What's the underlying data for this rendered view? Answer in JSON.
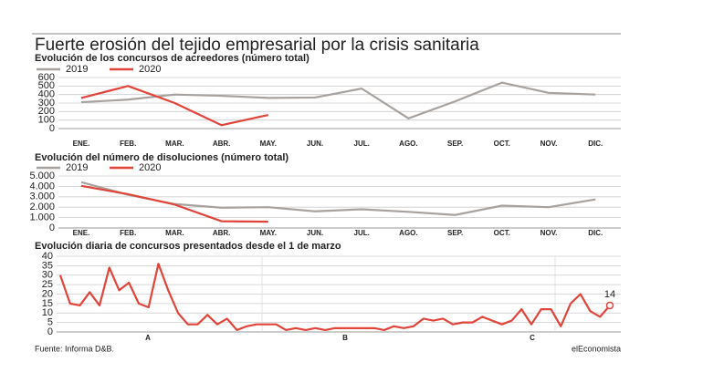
{
  "title": "Fuerte erosión del tejido empresarial por la crisis sanitaria",
  "source": "Fuente: Informa D&B.",
  "brand": "elEconomista",
  "chart_data": [
    {
      "type": "line",
      "title": "Evolución de los concursos de acreedores (número total)",
      "categories": [
        "ENE.",
        "FEB.",
        "MAR.",
        "ABR.",
        "MAY.",
        "JUN.",
        "JUL.",
        "AGO.",
        "SEP.",
        "OCT.",
        "NOV.",
        "DIC."
      ],
      "series": [
        {
          "name": "2019",
          "color": "#a8a29e",
          "values": [
            310,
            340,
            400,
            385,
            360,
            365,
            470,
            120,
            320,
            540,
            420,
            400
          ]
        },
        {
          "name": "2020",
          "color": "#e0443a",
          "values": [
            360,
            500,
            300,
            40,
            160,
            null,
            null,
            null,
            null,
            null,
            null,
            null
          ]
        }
      ],
      "ylim": [
        0,
        600
      ],
      "yticks": [
        0,
        100,
        200,
        300,
        400,
        500,
        600
      ],
      "grid": true
    },
    {
      "type": "line",
      "title": "Evolución del número de disoluciones (número total)",
      "categories": [
        "ENE.",
        "FEB.",
        "MAR.",
        "ABR.",
        "MAY.",
        "JUN.",
        "JUL.",
        "AGO.",
        "SEP.",
        "OCT.",
        "NOV.",
        "DIC."
      ],
      "series": [
        {
          "name": "2019",
          "color": "#a8a29e",
          "values": [
            4400,
            3200,
            2300,
            1950,
            2000,
            1600,
            1800,
            1550,
            1250,
            2150,
            2000,
            2750
          ]
        },
        {
          "name": "2020",
          "color": "#e0443a",
          "values": [
            4050,
            3250,
            2250,
            650,
            600,
            null,
            null,
            null,
            null,
            null,
            null,
            null
          ]
        }
      ],
      "ylim": [
        0,
        5000
      ],
      "yticks": [
        0,
        {
          "value": 1000,
          "label": "1.000"
        },
        {
          "value": 2000,
          "label": "2.000"
        },
        {
          "value": 3000,
          "label": "3.000"
        },
        {
          "value": 4000,
          "label": "4.000"
        },
        {
          "value": 5000,
          "label": "5.000"
        }
      ],
      "grid": true
    },
    {
      "type": "line",
      "title": "Evolución diaria de concursos presentados desde el 1 de marzo",
      "section_labels": [
        "A",
        "B",
        "C"
      ],
      "series": [
        {
          "color": "#e0443a",
          "values": [
            30,
            15,
            14,
            21,
            14,
            34,
            22,
            26,
            15,
            13,
            36,
            22,
            10,
            4,
            4,
            9,
            4,
            7,
            1,
            3,
            4,
            4,
            4,
            1,
            2,
            1,
            2,
            1,
            2,
            2,
            2,
            2,
            2,
            1,
            3,
            2,
            3,
            7,
            6,
            7,
            4,
            5,
            5,
            8,
            6,
            4,
            6,
            12,
            4,
            12,
            12,
            3,
            15,
            20,
            11,
            8,
            14
          ]
        }
      ],
      "ylim": [
        0,
        40
      ],
      "yticks": [
        0,
        5,
        10,
        15,
        20,
        25,
        30,
        35,
        40
      ],
      "grid": true
    }
  ]
}
